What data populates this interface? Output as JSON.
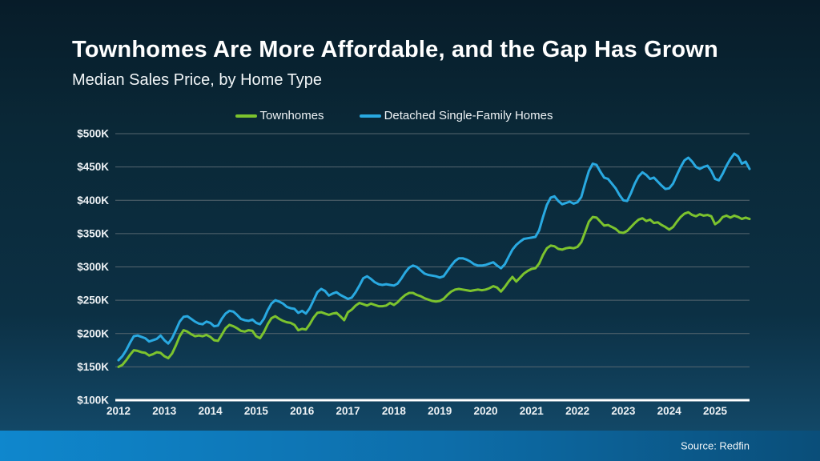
{
  "slide": {
    "title": "Townhomes Are More Affordable, and the Gap Has Grown",
    "subtitle": "Median Sales Price, by Home Type",
    "source": "Source: Redfin"
  },
  "colors": {
    "background_top": "#071c29",
    "background_bottom": "#144e70",
    "bottom_bar_left": "#0f87cd",
    "bottom_bar_right": "#0a4e79",
    "townhomes_line": "#7cc32e",
    "detached_line": "#29a9e1",
    "gridline": "#56666f",
    "axis_line": "#ffffff",
    "label_text": "#eef2f5"
  },
  "chart_data": {
    "type": "line",
    "title": "Median Sales Price, by Home Type",
    "x_monthly_start": "2012-01",
    "x_monthly_end": "2025-10",
    "ylim": [
      100,
      500
    ],
    "y_unit": "thousand USD",
    "grid": true,
    "legend_position": "top-center",
    "x_ticks": [
      "2012",
      "2013",
      "2014",
      "2015",
      "2016",
      "2017",
      "2018",
      "2019",
      "2020",
      "2021",
      "2022",
      "2023",
      "2024",
      "2025"
    ],
    "y_ticks": [
      {
        "value": 100,
        "label": "$100K"
      },
      {
        "value": 150,
        "label": "$150K"
      },
      {
        "value": 200,
        "label": "$200K"
      },
      {
        "value": 250,
        "label": "$250K"
      },
      {
        "value": 300,
        "label": "$300K"
      },
      {
        "value": 350,
        "label": "$350K"
      },
      {
        "value": 400,
        "label": "$400K"
      },
      {
        "value": 450,
        "label": "$450K"
      },
      {
        "value": 500,
        "label": "$500K"
      }
    ],
    "series": [
      {
        "name": "Townhomes",
        "color": "#7cc32e",
        "values": [
          150,
          153,
          160,
          168,
          175,
          174,
          172,
          171,
          167,
          169,
          172,
          171,
          166,
          163,
          170,
          182,
          196,
          205,
          203,
          199,
          196,
          197,
          196,
          198,
          195,
          190,
          189,
          198,
          208,
          213,
          211,
          208,
          204,
          203,
          205,
          204,
          196,
          193,
          202,
          214,
          223,
          226,
          222,
          219,
          217,
          216,
          213,
          205,
          207,
          206,
          214,
          224,
          231,
          232,
          230,
          228,
          230,
          231,
          226,
          220,
          232,
          236,
          242,
          246,
          244,
          242,
          245,
          243,
          241,
          241,
          242,
          246,
          243,
          247,
          253,
          258,
          261,
          261,
          258,
          256,
          253,
          251,
          249,
          248,
          249,
          252,
          258,
          263,
          266,
          267,
          266,
          265,
          264,
          265,
          266,
          265,
          266,
          268,
          271,
          269,
          263,
          270,
          278,
          285,
          278,
          284,
          290,
          294,
          297,
          298,
          305,
          318,
          328,
          332,
          331,
          327,
          326,
          328,
          329,
          328,
          330,
          337,
          352,
          368,
          375,
          374,
          368,
          362,
          363,
          360,
          357,
          352,
          351,
          354,
          360,
          366,
          371,
          373,
          369,
          371,
          366,
          367,
          363,
          360,
          356,
          360,
          368,
          375,
          380,
          382,
          378,
          376,
          379,
          377,
          378,
          376,
          364,
          368,
          375,
          377,
          374,
          377,
          375,
          372,
          374,
          372
        ]
      },
      {
        "name": "Detached Single-Family Homes",
        "color": "#29a9e1",
        "values": [
          160,
          166,
          175,
          186,
          196,
          197,
          195,
          193,
          188,
          190,
          192,
          197,
          190,
          185,
          193,
          205,
          218,
          225,
          226,
          222,
          218,
          215,
          214,
          218,
          216,
          211,
          212,
          222,
          230,
          234,
          233,
          228,
          222,
          220,
          219,
          221,
          216,
          214,
          222,
          235,
          245,
          250,
          248,
          245,
          240,
          238,
          237,
          231,
          234,
          230,
          238,
          250,
          262,
          267,
          264,
          257,
          260,
          262,
          258,
          255,
          252,
          254,
          262,
          272,
          283,
          286,
          282,
          277,
          274,
          273,
          274,
          273,
          272,
          275,
          283,
          292,
          299,
          302,
          300,
          295,
          290,
          288,
          287,
          286,
          284,
          286,
          294,
          302,
          309,
          313,
          313,
          311,
          308,
          304,
          302,
          302,
          303,
          305,
          307,
          302,
          298,
          304,
          315,
          326,
          333,
          338,
          342,
          343,
          344,
          345,
          355,
          375,
          393,
          404,
          406,
          399,
          394,
          396,
          398,
          395,
          397,
          405,
          425,
          444,
          455,
          453,
          443,
          434,
          432,
          425,
          418,
          408,
          400,
          399,
          411,
          425,
          436,
          442,
          438,
          432,
          434,
          428,
          422,
          417,
          418,
          425,
          438,
          450,
          460,
          464,
          458,
          450,
          447,
          450,
          452,
          444,
          432,
          430,
          440,
          452,
          462,
          470,
          466,
          455,
          458,
          447
        ]
      }
    ]
  }
}
